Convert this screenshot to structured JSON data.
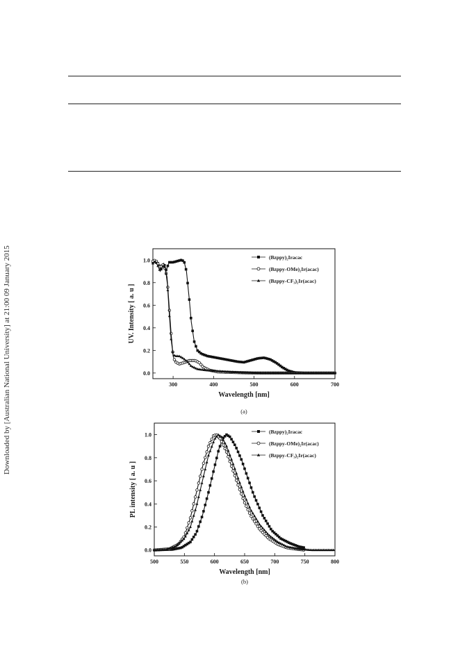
{
  "watermark": "Downloaded by [Australian National University] at 21:00 09 January 2015",
  "figure": {
    "panel_a_caption": "(a)",
    "panel_b_caption": "(b)"
  },
  "chart_data": [
    {
      "type": "line",
      "panel": "(a)",
      "xlabel": "Wavelength [nm]",
      "ylabel": "UV. Intensity [ a. u ]",
      "xlim": [
        250,
        700
      ],
      "ylim": [
        -0.05,
        1.1
      ],
      "xticks": [
        "300",
        "400",
        "500",
        "600",
        "700"
      ],
      "yticks": [
        "0.0",
        "0.2",
        "0.4",
        "0.6",
        "0.8",
        "1.0"
      ],
      "legend_position": "top-right",
      "series": [
        {
          "name": "(Bzppy)₂Iracac",
          "marker": "square",
          "points": [
            [
              250,
              0.98
            ],
            [
              258,
              0.99
            ],
            [
              265,
              0.96
            ],
            [
              270,
              0.92
            ],
            [
              277,
              0.97
            ],
            [
              283,
              0.91
            ],
            [
              290,
              0.98
            ],
            [
              300,
              0.98
            ],
            [
              310,
              0.99
            ],
            [
              320,
              1.0
            ],
            [
              327,
              0.99
            ],
            [
              333,
              0.9
            ],
            [
              340,
              0.65
            ],
            [
              345,
              0.45
            ],
            [
              352,
              0.28
            ],
            [
              360,
              0.2
            ],
            [
              370,
              0.17
            ],
            [
              385,
              0.15
            ],
            [
              400,
              0.14
            ],
            [
              430,
              0.12
            ],
            [
              460,
              0.1
            ],
            [
              475,
              0.095
            ],
            [
              490,
              0.11
            ],
            [
              510,
              0.13
            ],
            [
              525,
              0.135
            ],
            [
              540,
              0.12
            ],
            [
              555,
              0.09
            ],
            [
              570,
              0.05
            ],
            [
              585,
              0.02
            ],
            [
              600,
              0.005
            ],
            [
              625,
              0.0
            ],
            [
              700,
              0.0
            ]
          ]
        },
        {
          "name": "(Bzppy-OMe)₂Ir(acac)",
          "marker": "circle",
          "points": [
            [
              250,
              0.99
            ],
            [
              256,
              1.0
            ],
            [
              262,
              0.97
            ],
            [
              268,
              0.93
            ],
            [
              274,
              0.96
            ],
            [
              280,
              0.92
            ],
            [
              285,
              0.85
            ],
            [
              290,
              0.6
            ],
            [
              295,
              0.35
            ],
            [
              300,
              0.15
            ],
            [
              305,
              0.1
            ],
            [
              315,
              0.08
            ],
            [
              325,
              0.09
            ],
            [
              340,
              0.11
            ],
            [
              355,
              0.11
            ],
            [
              365,
              0.09
            ],
            [
              375,
              0.05
            ],
            [
              390,
              0.025
            ],
            [
              410,
              0.01
            ],
            [
              450,
              0.005
            ],
            [
              500,
              0.0
            ],
            [
              700,
              0.0
            ]
          ]
        },
        {
          "name": "(Bzppy-CF₃)₂Ir(acac)",
          "marker": "triangle",
          "points": [
            [
              250,
              0.97
            ],
            [
              256,
              0.99
            ],
            [
              262,
              0.95
            ],
            [
              268,
              0.9
            ],
            [
              275,
              0.95
            ],
            [
              281,
              0.93
            ],
            [
              286,
              0.78
            ],
            [
              290,
              0.55
            ],
            [
              295,
              0.3
            ],
            [
              300,
              0.16
            ],
            [
              307,
              0.15
            ],
            [
              315,
              0.15
            ],
            [
              325,
              0.13
            ],
            [
              335,
              0.1
            ],
            [
              345,
              0.06
            ],
            [
              360,
              0.035
            ],
            [
              380,
              0.025
            ],
            [
              400,
              0.02
            ],
            [
              430,
              0.012
            ],
            [
              470,
              0.005
            ],
            [
              520,
              0.0
            ],
            [
              700,
              0.0
            ]
          ]
        }
      ]
    },
    {
      "type": "line",
      "panel": "(b)",
      "xlabel": "Wavelength [nm]",
      "ylabel": "PL intensity [ a. u ]",
      "xlim": [
        500,
        800
      ],
      "ylim": [
        -0.05,
        1.1
      ],
      "xticks": [
        "500",
        "550",
        "600",
        "650",
        "700",
        "750",
        "800"
      ],
      "yticks": [
        "0.0",
        "0.2",
        "0.4",
        "0.6",
        "0.8",
        "1.0"
      ],
      "legend_position": "top-right",
      "series": [
        {
          "name": "(Bzppy)₂Iracac",
          "marker": "square",
          "points": [
            [
              500,
              0.0
            ],
            [
              530,
              0.005
            ],
            [
              545,
              0.02
            ],
            [
              560,
              0.07
            ],
            [
              570,
              0.15
            ],
            [
              580,
              0.3
            ],
            [
              590,
              0.5
            ],
            [
              600,
              0.72
            ],
            [
              607,
              0.87
            ],
            [
              614,
              0.97
            ],
            [
              620,
              1.0
            ],
            [
              626,
              0.98
            ],
            [
              635,
              0.9
            ],
            [
              645,
              0.78
            ],
            [
              655,
              0.63
            ],
            [
              665,
              0.48
            ],
            [
              680,
              0.3
            ],
            [
              695,
              0.17
            ],
            [
              710,
              0.1
            ],
            [
              725,
              0.06
            ],
            [
              740,
              0.03
            ],
            [
              750,
              0.02
            ]
          ]
        },
        {
          "name": "(Bzppy-OMe)₂Ir(acac)",
          "marker": "circle",
          "points": [
            [
              500,
              0.0
            ],
            [
              525,
              0.01
            ],
            [
              540,
              0.05
            ],
            [
              550,
              0.12
            ],
            [
              560,
              0.28
            ],
            [
              570,
              0.5
            ],
            [
              580,
              0.72
            ],
            [
              590,
              0.9
            ],
            [
              598,
              0.99
            ],
            [
              603,
              1.0
            ],
            [
              610,
              0.96
            ],
            [
              620,
              0.85
            ],
            [
              630,
              0.7
            ],
            [
              640,
              0.55
            ],
            [
              650,
              0.41
            ],
            [
              660,
              0.3
            ],
            [
              675,
              0.18
            ],
            [
              690,
              0.1
            ],
            [
              705,
              0.05
            ],
            [
              720,
              0.02
            ],
            [
              740,
              0.005
            ],
            [
              750,
              0.0
            ]
          ]
        },
        {
          "name": "(Bzppy-CF₃)₂Ir(acac)",
          "marker": "triangle",
          "points": [
            [
              500,
              0.0
            ],
            [
              520,
              0.005
            ],
            [
              535,
              0.03
            ],
            [
              550,
              0.1
            ],
            [
              560,
              0.2
            ],
            [
              570,
              0.38
            ],
            [
              580,
              0.6
            ],
            [
              590,
              0.82
            ],
            [
              600,
              0.96
            ],
            [
              606,
              1.0
            ],
            [
              612,
              0.98
            ],
            [
              620,
              0.9
            ],
            [
              630,
              0.76
            ],
            [
              640,
              0.61
            ],
            [
              650,
              0.47
            ],
            [
              660,
              0.35
            ],
            [
              675,
              0.22
            ],
            [
              690,
              0.13
            ],
            [
              705,
              0.07
            ],
            [
              720,
              0.03
            ],
            [
              740,
              0.01
            ],
            [
              760,
              0.0
            ],
            [
              800,
              0.0
            ]
          ]
        }
      ]
    }
  ]
}
